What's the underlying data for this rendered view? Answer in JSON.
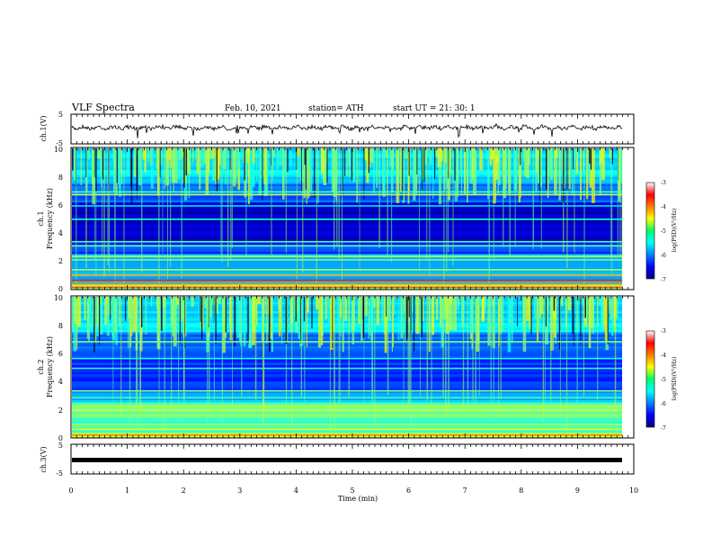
{
  "header": {
    "title": "VLF Spectra",
    "date": "Feb. 10, 2021",
    "station": "station= ATH",
    "start": "start  UT  =   21: 30: 1"
  },
  "chart_data": [
    {
      "type": "line",
      "panel": "ch1-waveform",
      "ylabel": "ch.1(V)",
      "ylim": [
        -5,
        5
      ],
      "yticks": [
        "5",
        "-5"
      ],
      "xlim": [
        0,
        10
      ],
      "grid": false
    },
    {
      "type": "heatmap",
      "panel": "ch1-spectrogram",
      "ylabel": "ch.1\nFrequency (kHz)",
      "ylabel_line1": "ch.1",
      "ylabel_line2": "Frequency  (kHz)",
      "ylim": [
        0,
        10
      ],
      "yticks": [
        "0",
        "2",
        "4",
        "6",
        "8",
        "10"
      ],
      "xlim": [
        0,
        10
      ],
      "colorbar": {
        "label": "log(PSD)(V²/Hz)",
        "range": [
          -7,
          -3
        ],
        "ticks": [
          "-3",
          "-4",
          "-5",
          "-6",
          "-7"
        ],
        "colormap": "jet"
      }
    },
    {
      "type": "heatmap",
      "panel": "ch2-spectrogram",
      "ylabel": "ch.2\nFrequency (kHz)",
      "ylabel_line1": "ch.2",
      "ylabel_line2": "Frequency  (kHz)",
      "ylim": [
        0,
        10
      ],
      "yticks": [
        "0",
        "2",
        "4",
        "6",
        "8",
        "10"
      ],
      "xlim": [
        0,
        10
      ],
      "colorbar": {
        "label": "log(PSD)(V²/Hz)",
        "range": [
          -7,
          -3
        ],
        "ticks": [
          "-3",
          "-4",
          "-5",
          "-6",
          "-7"
        ],
        "colormap": "jet"
      }
    },
    {
      "type": "line",
      "panel": "ch3-waveform",
      "ylabel": "ch.3(V)",
      "ylim": [
        -5,
        5
      ],
      "yticks": [
        "5",
        "-5"
      ],
      "xlim": [
        0,
        10
      ],
      "xlabel": "Time  (min)",
      "xticks": [
        "0",
        "1",
        "2",
        "3",
        "4",
        "5",
        "6",
        "7",
        "8",
        "9",
        "10"
      ],
      "grid": false
    }
  ]
}
